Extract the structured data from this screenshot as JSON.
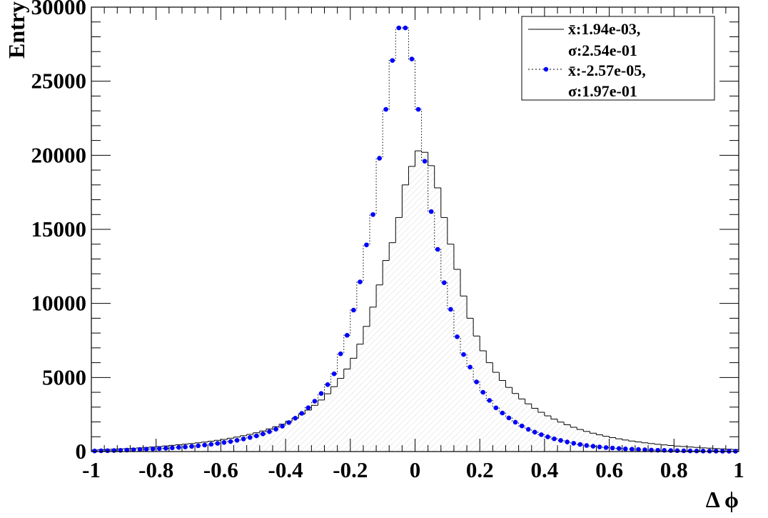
{
  "chart_data": {
    "type": "histogram",
    "title": "",
    "xlabel": "Δ ϕ",
    "ylabel": "Entry",
    "xlim": [
      -1,
      1
    ],
    "ylim": [
      0,
      30000
    ],
    "grid": false,
    "legend_position": "top-right",
    "x_ticks": [
      "-1",
      "-0.8",
      "-0.6",
      "-0.4",
      "-0.2",
      "0",
      "0.2",
      "0.4",
      "0.6",
      "0.8",
      "1"
    ],
    "y_ticks": [
      "0",
      "5000",
      "10000",
      "15000",
      "20000",
      "25000",
      "30000"
    ],
    "bin_edges_start": -1,
    "bin_width": 0.02,
    "series": [
      {
        "name_mean": "x̄:1.94e-03,",
        "name_sigma": "σ:2.54e-01",
        "style": "solid-step",
        "color": "#000000",
        "values": [
          100,
          120,
          140,
          160,
          180,
          200,
          220,
          250,
          280,
          310,
          340,
          380,
          420,
          460,
          500,
          540,
          590,
          640,
          700,
          760,
          820,
          900,
          980,
          1070,
          1160,
          1270,
          1390,
          1530,
          1680,
          1850,
          2050,
          2270,
          2520,
          2800,
          3120,
          3480,
          3900,
          4380,
          4940,
          5570,
          6300,
          7250,
          8450,
          9750,
          11250,
          12900,
          14100,
          15800,
          18000,
          19250,
          20300,
          20200,
          19300,
          17800,
          15800,
          14000,
          12300,
          10500,
          9000,
          7800,
          6800,
          6000,
          5350,
          4800,
          4330,
          3920,
          3550,
          3220,
          2920,
          2650,
          2410,
          2190,
          1990,
          1810,
          1640,
          1490,
          1360,
          1240,
          1130,
          1030,
          940,
          860,
          780,
          710,
          650,
          590,
          540,
          490,
          450,
          410,
          370,
          340,
          310,
          280,
          250,
          230,
          200,
          180,
          160,
          140
        ]
      },
      {
        "name_mean": "x̄:-2.57e-05,",
        "name_sigma": "σ:1.97e-01",
        "style": "dotted-step-markers",
        "color": "#0000ff",
        "values": [
          40,
          50,
          60,
          70,
          80,
          100,
          120,
          140,
          160,
          180,
          200,
          220,
          250,
          280,
          310,
          350,
          390,
          440,
          490,
          550,
          610,
          680,
          760,
          850,
          950,
          1060,
          1190,
          1340,
          1510,
          1710,
          1960,
          2250,
          2580,
          2960,
          3400,
          3920,
          4520,
          5250,
          6600,
          7850,
          9550,
          11450,
          13950,
          16000,
          19800,
          23100,
          26400,
          28600,
          28600,
          26500,
          23100,
          19600,
          16200,
          13650,
          11400,
          9600,
          7750,
          6550,
          5700,
          4700,
          4000,
          3450,
          2950,
          2600,
          2270,
          1980,
          1730,
          1500,
          1310,
          1140,
          990,
          860,
          750,
          650,
          560,
          480,
          410,
          360,
          310,
          270,
          240,
          210,
          180,
          160,
          140,
          120,
          100,
          90,
          80,
          70,
          60,
          50,
          45,
          40,
          35,
          30,
          30,
          25,
          20,
          20
        ]
      }
    ]
  }
}
